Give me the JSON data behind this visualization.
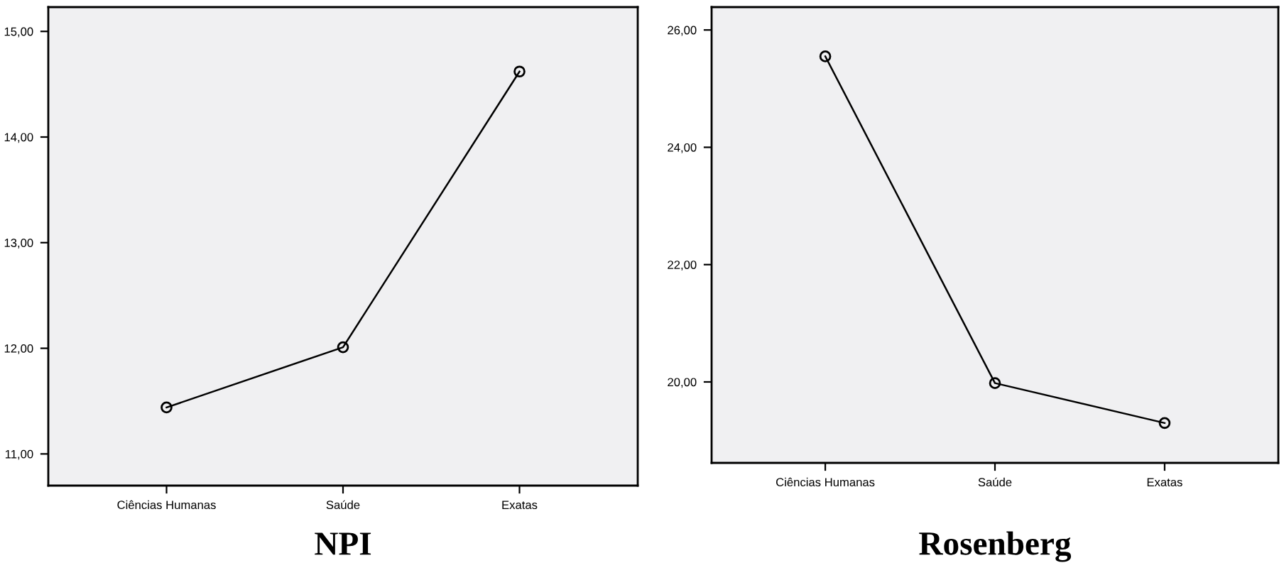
{
  "chart_data": [
    {
      "type": "line",
      "title": "NPI",
      "categories": [
        "Ciências Humanas",
        "Saúde",
        "Exatas"
      ],
      "series": [
        {
          "color": "#000000",
          "values": [
            11.44,
            12.01,
            14.62
          ]
        }
      ],
      "ylim": [
        10.7,
        15.23
      ],
      "yticks": [
        {
          "value": 11,
          "label": "11,00"
        },
        {
          "value": 12,
          "label": "12,00"
        },
        {
          "value": 13,
          "label": "13,00"
        },
        {
          "value": 14,
          "label": "14,00"
        },
        {
          "value": 15,
          "label": "15,00"
        }
      ],
      "marker": "circle",
      "line_style": "solid",
      "grid": false,
      "legend": false
    },
    {
      "type": "line",
      "title": "Rosenberg",
      "categories": [
        "Ciências Humanas",
        "Saúde",
        "Exatas"
      ],
      "series": [
        {
          "color": "#000000",
          "values": [
            25.55,
            19.98,
            19.3
          ]
        }
      ],
      "ylim": [
        18.62,
        26.39
      ],
      "yticks": [
        {
          "value": 20,
          "label": "20,00"
        },
        {
          "value": 22,
          "label": "22,00"
        },
        {
          "value": 24,
          "label": "24,00"
        },
        {
          "value": 26,
          "label": "26,00"
        }
      ],
      "marker": "circle",
      "line_style": "solid",
      "grid": false,
      "legend": false
    }
  ]
}
